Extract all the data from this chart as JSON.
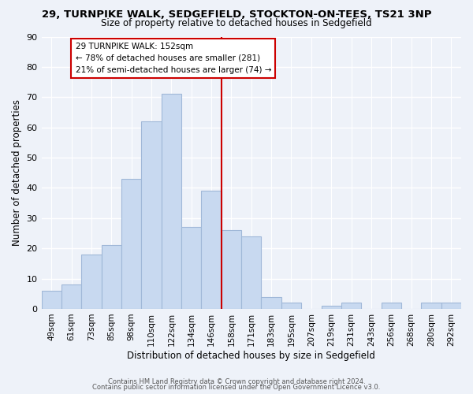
{
  "title1": "29, TURNPIKE WALK, SEDGEFIELD, STOCKTON-ON-TEES, TS21 3NP",
  "title2": "Size of property relative to detached houses in Sedgefield",
  "xlabel": "Distribution of detached houses by size in Sedgefield",
  "ylabel": "Number of detached properties",
  "bar_labels": [
    "49sqm",
    "61sqm",
    "73sqm",
    "85sqm",
    "98sqm",
    "110sqm",
    "122sqm",
    "134sqm",
    "146sqm",
    "158sqm",
    "171sqm",
    "183sqm",
    "195sqm",
    "207sqm",
    "219sqm",
    "231sqm",
    "243sqm",
    "256sqm",
    "268sqm",
    "280sqm",
    "292sqm"
  ],
  "bar_values": [
    6,
    8,
    18,
    21,
    43,
    62,
    71,
    27,
    39,
    26,
    24,
    4,
    2,
    0,
    1,
    2,
    0,
    2,
    0,
    2,
    2
  ],
  "bar_color": "#c8d9f0",
  "bar_edge_color": "#a0b8d8",
  "vline_x": 8.5,
  "vline_color": "#cc0000",
  "annotation_title": "29 TURNPIKE WALK: 152sqm",
  "annotation_line1": "← 78% of detached houses are smaller (281)",
  "annotation_line2": "21% of semi-detached houses are larger (74) →",
  "annotation_box_color": "#ffffff",
  "annotation_box_edge": "#cc0000",
  "ylim": [
    0,
    90
  ],
  "yticks": [
    0,
    10,
    20,
    30,
    40,
    50,
    60,
    70,
    80,
    90
  ],
  "footer1": "Contains HM Land Registry data © Crown copyright and database right 2024.",
  "footer2": "Contains public sector information licensed under the Open Government Licence v3.0.",
  "bg_color": "#eef2f9"
}
